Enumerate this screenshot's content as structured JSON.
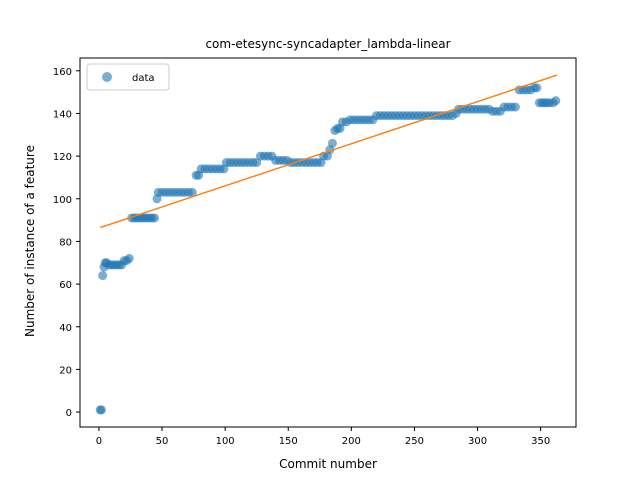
{
  "chart_data": {
    "type": "scatter",
    "title": "com-etesync-syncadapter_lambda-linear",
    "xlabel": "Commit number",
    "ylabel": "Number of instance of a feature",
    "xlim": [
      -15,
      378
    ],
    "ylim": [
      -7,
      166
    ],
    "xticks": [
      0,
      50,
      100,
      150,
      200,
      250,
      300,
      350
    ],
    "yticks": [
      0,
      20,
      40,
      60,
      80,
      100,
      120,
      140,
      160
    ],
    "legend": {
      "position": "top-left",
      "entries": [
        "data"
      ]
    },
    "colors": {
      "data": "#1f77b4",
      "fit": "#ff7f0e"
    },
    "series": [
      {
        "name": "data",
        "kind": "scatter",
        "points": [
          [
            1,
            1
          ],
          [
            2,
            1
          ],
          [
            3,
            64
          ],
          [
            4,
            68
          ],
          [
            5,
            70
          ],
          [
            6,
            70
          ],
          [
            8,
            69
          ],
          [
            10,
            69
          ],
          [
            12,
            69
          ],
          [
            14,
            69
          ],
          [
            16,
            69
          ],
          [
            18,
            69
          ],
          [
            20,
            71
          ],
          [
            22,
            71
          ],
          [
            24,
            72
          ],
          [
            26,
            91
          ],
          [
            28,
            91
          ],
          [
            30,
            91
          ],
          [
            32,
            91
          ],
          [
            34,
            91
          ],
          [
            36,
            91
          ],
          [
            38,
            91
          ],
          [
            40,
            91
          ],
          [
            42,
            91
          ],
          [
            44,
            91
          ],
          [
            46,
            100
          ],
          [
            47,
            103
          ],
          [
            50,
            103
          ],
          [
            53,
            103
          ],
          [
            56,
            103
          ],
          [
            59,
            103
          ],
          [
            62,
            103
          ],
          [
            65,
            103
          ],
          [
            68,
            103
          ],
          [
            71,
            103
          ],
          [
            74,
            103
          ],
          [
            77,
            111
          ],
          [
            79,
            111
          ],
          [
            81,
            114
          ],
          [
            84,
            114
          ],
          [
            87,
            114
          ],
          [
            90,
            114
          ],
          [
            93,
            114
          ],
          [
            96,
            114
          ],
          [
            99,
            114
          ],
          [
            101,
            117
          ],
          [
            104,
            117
          ],
          [
            107,
            117
          ],
          [
            110,
            117
          ],
          [
            113,
            117
          ],
          [
            116,
            117
          ],
          [
            119,
            117
          ],
          [
            122,
            117
          ],
          [
            125,
            117
          ],
          [
            128,
            120
          ],
          [
            131,
            120
          ],
          [
            134,
            120
          ],
          [
            137,
            120
          ],
          [
            140,
            118
          ],
          [
            143,
            118
          ],
          [
            146,
            118
          ],
          [
            149,
            118
          ],
          [
            152,
            117
          ],
          [
            155,
            117
          ],
          [
            158,
            117
          ],
          [
            161,
            117
          ],
          [
            164,
            117
          ],
          [
            167,
            117
          ],
          [
            170,
            117
          ],
          [
            173,
            117
          ],
          [
            176,
            117
          ],
          [
            178,
            120
          ],
          [
            181,
            120
          ],
          [
            183,
            123
          ],
          [
            185,
            126
          ],
          [
            187,
            132
          ],
          [
            189,
            133
          ],
          [
            191,
            133
          ],
          [
            193,
            136
          ],
          [
            196,
            136
          ],
          [
            199,
            137
          ],
          [
            202,
            137
          ],
          [
            205,
            137
          ],
          [
            208,
            137
          ],
          [
            211,
            137
          ],
          [
            214,
            137
          ],
          [
            217,
            137
          ],
          [
            220,
            139
          ],
          [
            223,
            139
          ],
          [
            226,
            139
          ],
          [
            229,
            139
          ],
          [
            232,
            139
          ],
          [
            235,
            139
          ],
          [
            238,
            139
          ],
          [
            241,
            139
          ],
          [
            244,
            139
          ],
          [
            247,
            139
          ],
          [
            250,
            139
          ],
          [
            253,
            139
          ],
          [
            256,
            139
          ],
          [
            259,
            139
          ],
          [
            262,
            139
          ],
          [
            265,
            139
          ],
          [
            268,
            139
          ],
          [
            271,
            139
          ],
          [
            274,
            139
          ],
          [
            277,
            139
          ],
          [
            280,
            139
          ],
          [
            283,
            140
          ],
          [
            285,
            142
          ],
          [
            288,
            142
          ],
          [
            291,
            142
          ],
          [
            294,
            142
          ],
          [
            297,
            142
          ],
          [
            300,
            142
          ],
          [
            303,
            142
          ],
          [
            306,
            142
          ],
          [
            309,
            142
          ],
          [
            312,
            141
          ],
          [
            315,
            141
          ],
          [
            318,
            141
          ],
          [
            321,
            143
          ],
          [
            324,
            143
          ],
          [
            327,
            143
          ],
          [
            330,
            143
          ],
          [
            333,
            151
          ],
          [
            336,
            151
          ],
          [
            339,
            151
          ],
          [
            342,
            151
          ],
          [
            345,
            152
          ],
          [
            347,
            152
          ],
          [
            349,
            145
          ],
          [
            351,
            145
          ],
          [
            353,
            145
          ],
          [
            355,
            145
          ],
          [
            357,
            145
          ],
          [
            360,
            145
          ],
          [
            362,
            146
          ]
        ]
      },
      {
        "name": "",
        "kind": "line",
        "points": [
          [
            1,
            86.5
          ],
          [
            363,
            158
          ]
        ]
      }
    ]
  }
}
